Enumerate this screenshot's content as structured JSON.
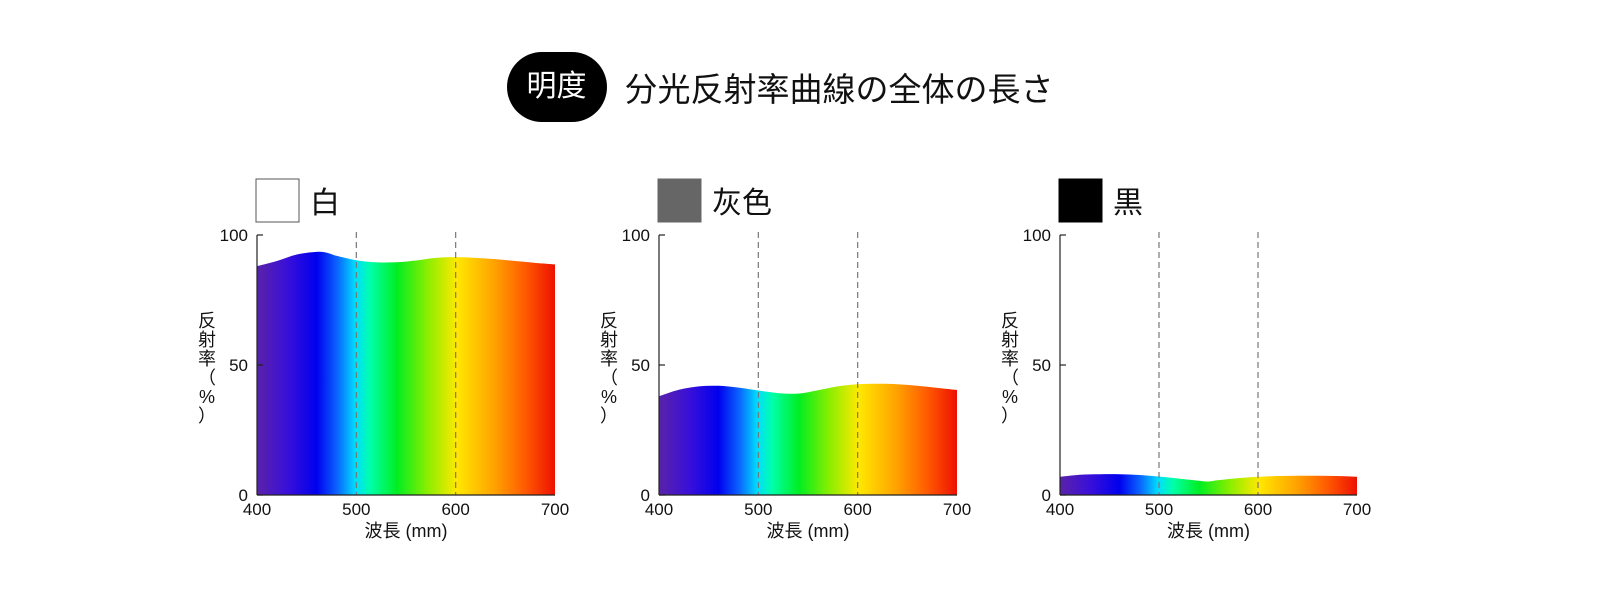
{
  "header": {
    "badge": "明度",
    "title": "分光反射率曲線の全体の長さ"
  },
  "chart_data": [
    {
      "type": "area",
      "title": "白",
      "swatch_color": "#ffffff",
      "swatch_border": "#555555",
      "xlabel": "波長 (mm)",
      "ylabel": "反射率（%）",
      "xlim": [
        400,
        700
      ],
      "ylim": [
        0,
        100
      ],
      "xticks": [
        400,
        500,
        600,
        700
      ],
      "yticks": [
        0,
        50,
        100
      ],
      "dashed_x": [
        500,
        600
      ],
      "series": [
        {
          "x": [
            400,
            420,
            440,
            460,
            470,
            480,
            500,
            520,
            540,
            560,
            580,
            600,
            620,
            640,
            660,
            680,
            700
          ],
          "values": [
            88,
            90,
            92.5,
            93.5,
            93.2,
            92,
            90.3,
            89.5,
            89.5,
            90.2,
            91.2,
            91.5,
            91.2,
            90.7,
            90,
            89.3,
            88.7
          ]
        }
      ]
    },
    {
      "type": "area",
      "title": "灰色",
      "swatch_color": "#666666",
      "swatch_border": "#666666",
      "xlabel": "波長 (mm)",
      "ylabel": "反射率（%）",
      "xlim": [
        400,
        700
      ],
      "ylim": [
        0,
        100
      ],
      "xticks": [
        400,
        500,
        600,
        700
      ],
      "yticks": [
        0,
        50,
        100
      ],
      "dashed_x": [
        500,
        600
      ],
      "series": [
        {
          "x": [
            400,
            420,
            440,
            460,
            480,
            500,
            520,
            540,
            560,
            580,
            600,
            620,
            640,
            660,
            680,
            700
          ],
          "values": [
            38,
            40.5,
            41.8,
            42,
            41.3,
            40.2,
            39.2,
            39,
            40.3,
            41.8,
            42.6,
            42.8,
            42.6,
            42,
            41.2,
            40.4
          ]
        }
      ]
    },
    {
      "type": "area",
      "title": "黒",
      "swatch_color": "#000000",
      "swatch_border": "#000000",
      "xlabel": "波長 (mm)",
      "ylabel": "反射率（%）",
      "xlim": [
        400,
        700
      ],
      "ylim": [
        0,
        100
      ],
      "xticks": [
        400,
        500,
        600,
        700
      ],
      "yticks": [
        0,
        50,
        100
      ],
      "dashed_x": [
        500,
        600
      ],
      "series": [
        {
          "x": [
            400,
            420,
            440,
            460,
            480,
            500,
            520,
            540,
            550,
            560,
            580,
            600,
            620,
            640,
            660,
            680,
            700
          ],
          "values": [
            7,
            7.8,
            8,
            8,
            7.7,
            7.1,
            6.3,
            5.5,
            5.2,
            5.7,
            6.5,
            7,
            7.3,
            7.4,
            7.4,
            7.3,
            7
          ]
        }
      ]
    }
  ]
}
